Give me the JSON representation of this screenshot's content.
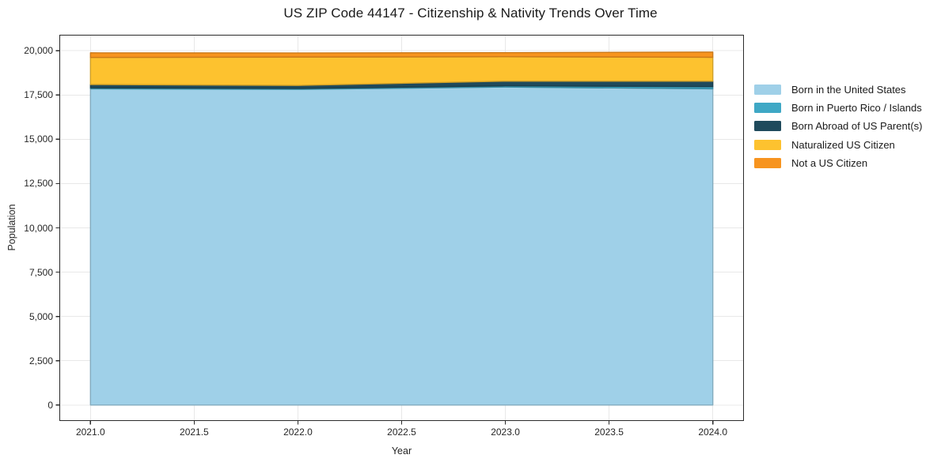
{
  "title": "US ZIP Code 44147 - Citizenship & Nativity Trends Over Time",
  "chart_data": {
    "type": "area",
    "stacked": true,
    "title": "US ZIP Code 44147 - Citizenship & Nativity Trends Over Time",
    "xlabel": "Year",
    "ylabel": "Population",
    "x": [
      2021,
      2022,
      2023,
      2024
    ],
    "series": [
      {
        "name": "Born in the United States",
        "color": "#9fd0e8",
        "values": [
          17850,
          17820,
          17950,
          17850
        ]
      },
      {
        "name": "Born in Puerto Rico / Islands",
        "color": "#3fa8c5",
        "values": [
          60,
          50,
          70,
          120
        ]
      },
      {
        "name": "Born Abroad of US Parent(s)",
        "color": "#1f4a5c",
        "values": [
          180,
          170,
          260,
          310
        ]
      },
      {
        "name": "Naturalized US Citizen",
        "color": "#fdc22f",
        "values": [
          1530,
          1600,
          1380,
          1350
        ]
      },
      {
        "name": "Not a US Citizen",
        "color": "#f7941f",
        "values": [
          260,
          230,
          230,
          290
        ]
      }
    ],
    "xlim": [
      2020.85,
      2024.15
    ],
    "ylim": [
      -900,
      20900
    ],
    "xticks": [
      2021.0,
      2021.5,
      2022.0,
      2022.5,
      2023.0,
      2023.5,
      2024.0
    ],
    "xtick_labels": [
      "2021.0",
      "2021.5",
      "2022.0",
      "2022.5",
      "2023.0",
      "2023.5",
      "2024.0"
    ],
    "yticks": [
      0,
      2500,
      5000,
      7500,
      10000,
      12500,
      15000,
      17500,
      20000
    ],
    "ytick_labels": [
      "0",
      "2,500",
      "5,000",
      "7,500",
      "10,000",
      "12,500",
      "15,000",
      "17,500",
      "20,000"
    ],
    "grid": true,
    "gridline_color": "#e8e8e8",
    "frame_color": "#2b2b2b",
    "text_color": "#262626",
    "legend_position": "right"
  }
}
